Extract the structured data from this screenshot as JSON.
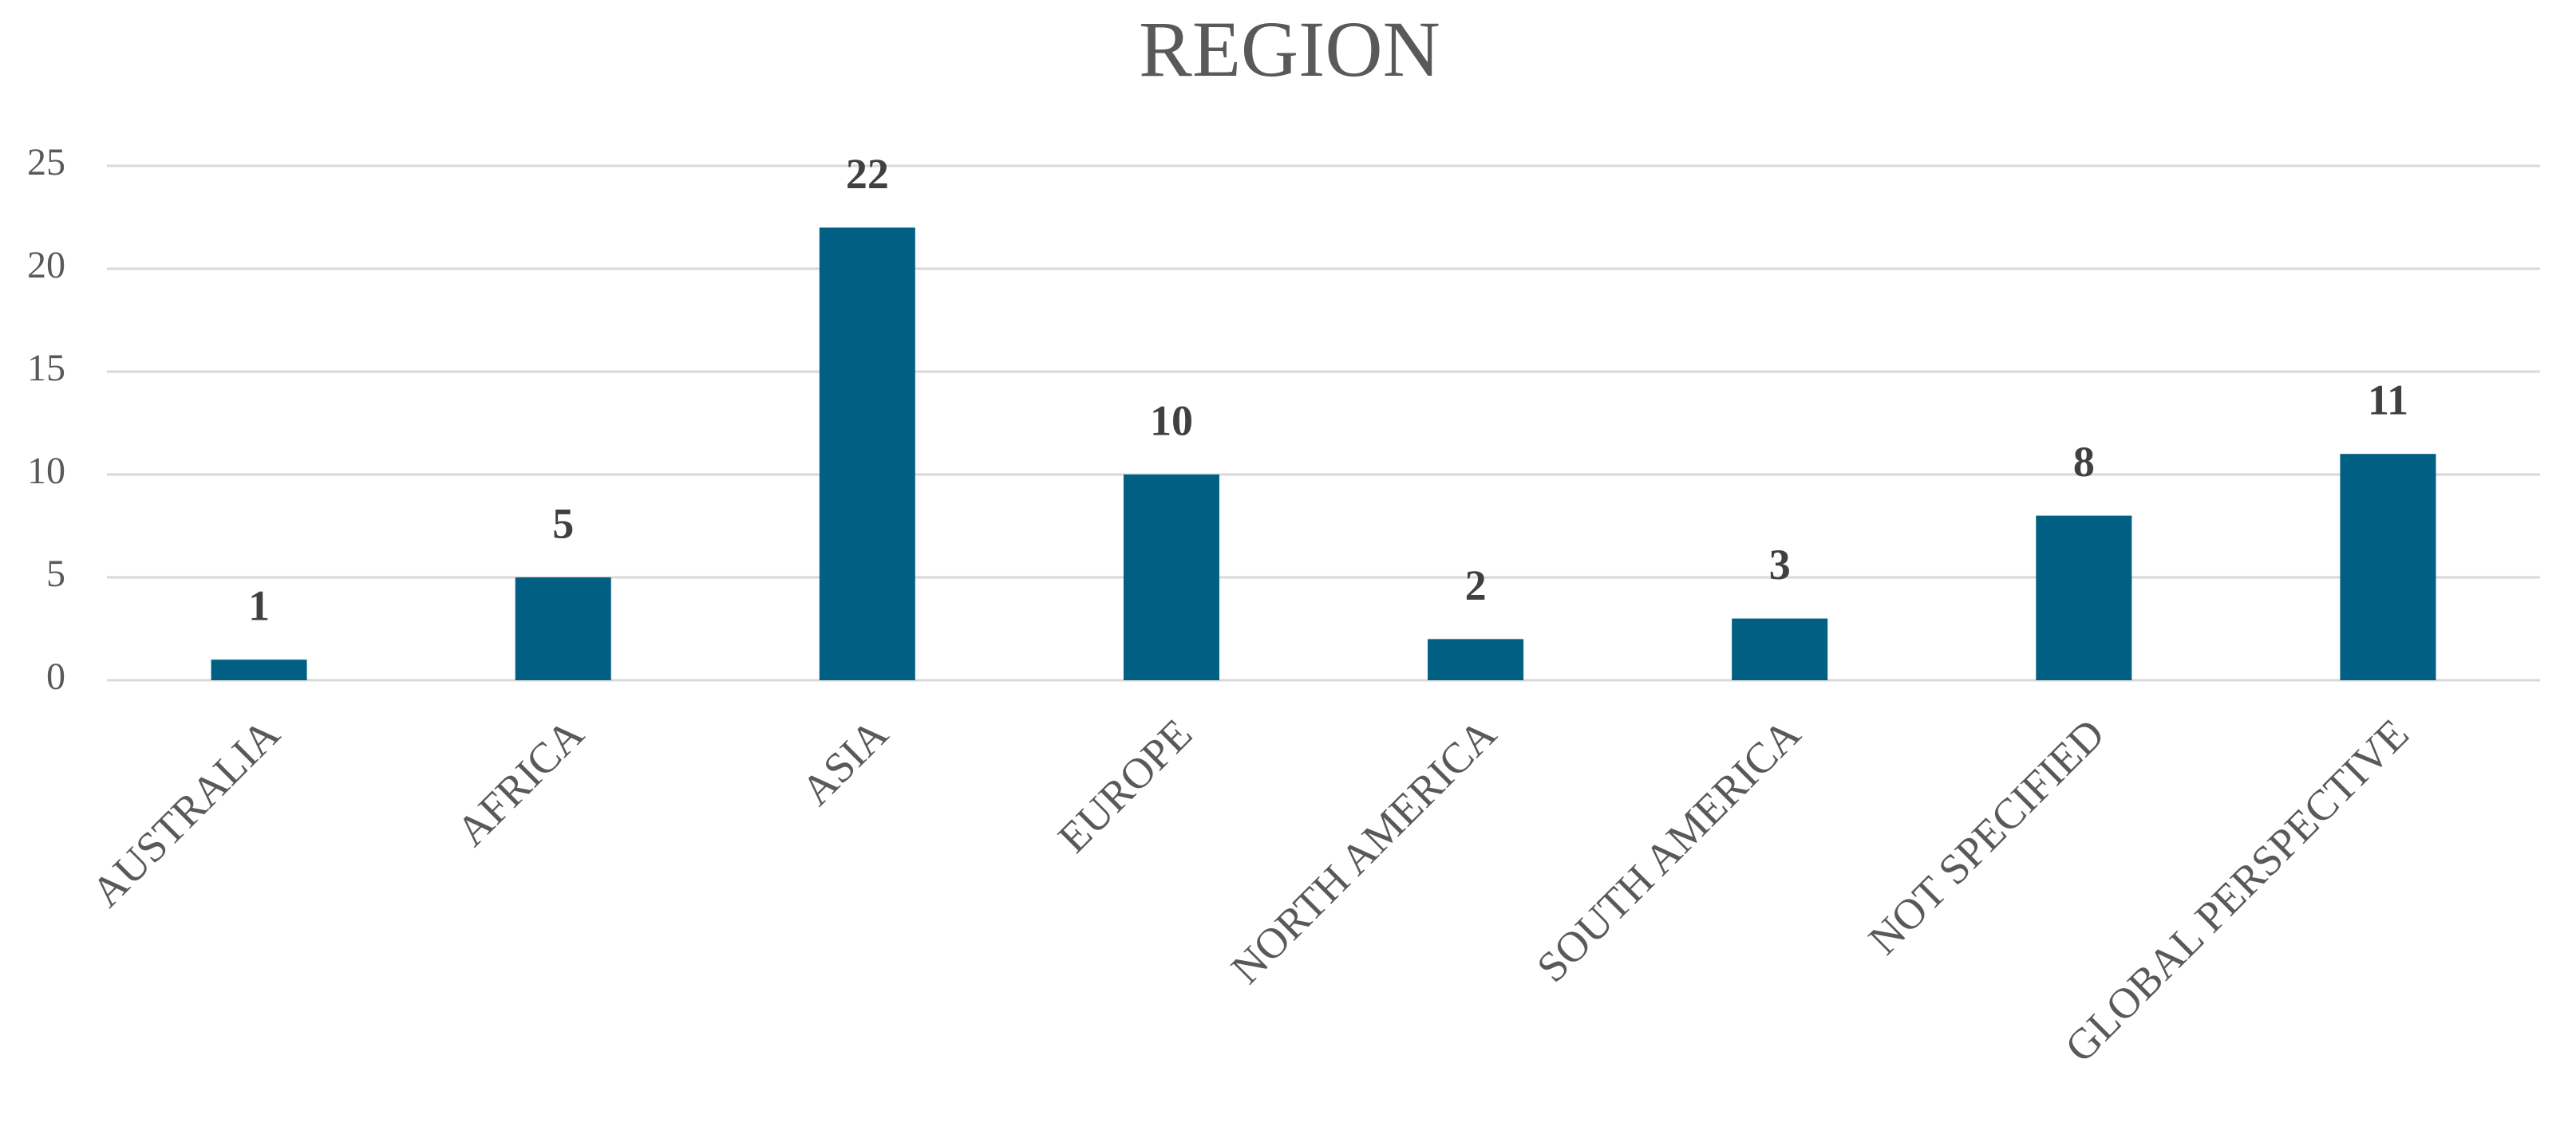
{
  "chart_data": {
    "type": "bar",
    "title": "REGION",
    "categories": [
      "AUSTRALIA",
      "AFRICA",
      "ASIA",
      "EUROPE",
      "NORTH AMERICA",
      "SOUTH AMERICA",
      "NOT SPECIFIED",
      "GLOBAL PERSPECTIVE"
    ],
    "values": [
      1,
      5,
      22,
      10,
      2,
      3,
      8,
      11
    ],
    "color": "#005f83",
    "ylim": [
      0,
      25
    ],
    "yticks": [
      0,
      5,
      10,
      15,
      20,
      25
    ],
    "grid": true
  }
}
